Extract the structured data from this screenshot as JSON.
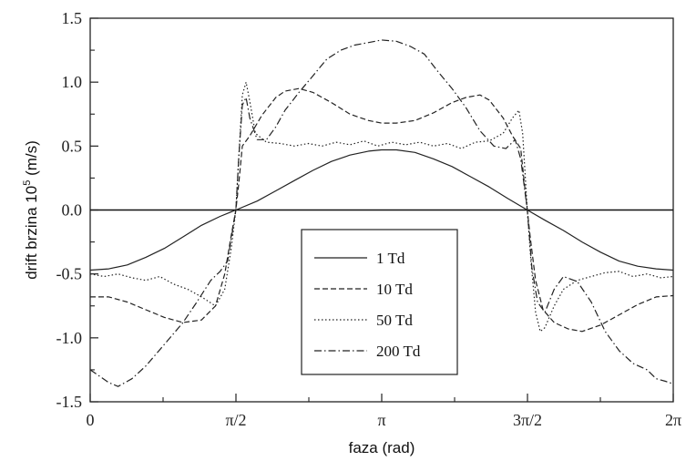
{
  "chart_data": {
    "type": "line",
    "title": "",
    "xlabel": "faza (rad)",
    "ylabel_prefix": "drift brzina 10",
    "ylabel_exp": "5",
    "ylabel_suffix": " (m/s)",
    "xlim": [
      0,
      6.2832
    ],
    "ylim": [
      -1.5,
      1.5
    ],
    "x_ticks": [
      {
        "value": 0,
        "label": "0"
      },
      {
        "value": 1.5708,
        "label": "π/2"
      },
      {
        "value": 3.1416,
        "label": "π"
      },
      {
        "value": 4.7124,
        "label": "3π/2"
      },
      {
        "value": 6.2832,
        "label": "2π"
      }
    ],
    "y_ticks": [
      {
        "value": -1.5,
        "label": "-1.5"
      },
      {
        "value": -1.0,
        "label": "-1.0"
      },
      {
        "value": -0.5,
        "label": "-0.5"
      },
      {
        "value": 0.0,
        "label": "0.0"
      },
      {
        "value": 0.5,
        "label": "0.5"
      },
      {
        "value": 1.0,
        "label": "1.0"
      },
      {
        "value": 1.5,
        "label": "1.5"
      }
    ],
    "legend_position": "lower-center",
    "grid": false,
    "series": [
      {
        "name": "1 Td",
        "dash": "solid",
        "points": [
          [
            0,
            -0.47
          ],
          [
            0.2,
            -0.46
          ],
          [
            0.4,
            -0.43
          ],
          [
            0.6,
            -0.37
          ],
          [
            0.8,
            -0.3
          ],
          [
            1.0,
            -0.21
          ],
          [
            1.2,
            -0.12
          ],
          [
            1.4,
            -0.05
          ],
          [
            1.57,
            0.0
          ],
          [
            1.8,
            0.07
          ],
          [
            2.0,
            0.15
          ],
          [
            2.2,
            0.23
          ],
          [
            2.4,
            0.31
          ],
          [
            2.6,
            0.38
          ],
          [
            2.8,
            0.43
          ],
          [
            3.0,
            0.46
          ],
          [
            3.14,
            0.47
          ],
          [
            3.3,
            0.47
          ],
          [
            3.5,
            0.45
          ],
          [
            3.7,
            0.4
          ],
          [
            3.9,
            0.34
          ],
          [
            4.1,
            0.26
          ],
          [
            4.3,
            0.18
          ],
          [
            4.5,
            0.09
          ],
          [
            4.71,
            0.0
          ],
          [
            4.9,
            -0.08
          ],
          [
            5.1,
            -0.16
          ],
          [
            5.3,
            -0.25
          ],
          [
            5.5,
            -0.33
          ],
          [
            5.7,
            -0.4
          ],
          [
            5.9,
            -0.44
          ],
          [
            6.1,
            -0.46
          ],
          [
            6.2832,
            -0.47
          ]
        ]
      },
      {
        "name": "10 Td",
        "dash": "dashed",
        "points": [
          [
            0,
            -0.68
          ],
          [
            0.2,
            -0.68
          ],
          [
            0.4,
            -0.72
          ],
          [
            0.6,
            -0.78
          ],
          [
            0.8,
            -0.84
          ],
          [
            1.0,
            -0.88
          ],
          [
            1.2,
            -0.86
          ],
          [
            1.35,
            -0.75
          ],
          [
            1.45,
            -0.5
          ],
          [
            1.52,
            -0.2
          ],
          [
            1.57,
            0.0
          ],
          [
            1.6,
            0.2
          ],
          [
            1.64,
            0.5
          ],
          [
            1.72,
            0.58
          ],
          [
            1.85,
            0.74
          ],
          [
            2.0,
            0.88
          ],
          [
            2.1,
            0.93
          ],
          [
            2.25,
            0.95
          ],
          [
            2.4,
            0.92
          ],
          [
            2.6,
            0.84
          ],
          [
            2.8,
            0.75
          ],
          [
            3.0,
            0.7
          ],
          [
            3.14,
            0.68
          ],
          [
            3.3,
            0.68
          ],
          [
            3.5,
            0.7
          ],
          [
            3.7,
            0.76
          ],
          [
            3.9,
            0.84
          ],
          [
            4.05,
            0.88
          ],
          [
            4.2,
            0.9
          ],
          [
            4.3,
            0.86
          ],
          [
            4.45,
            0.72
          ],
          [
            4.55,
            0.58
          ],
          [
            4.64,
            0.48
          ],
          [
            4.68,
            0.2
          ],
          [
            4.71,
            0.0
          ],
          [
            4.74,
            -0.2
          ],
          [
            4.8,
            -0.55
          ],
          [
            4.88,
            -0.78
          ],
          [
            5.0,
            -0.88
          ],
          [
            5.15,
            -0.93
          ],
          [
            5.3,
            -0.95
          ],
          [
            5.5,
            -0.9
          ],
          [
            5.7,
            -0.82
          ],
          [
            5.9,
            -0.74
          ],
          [
            6.1,
            -0.68
          ],
          [
            6.2832,
            -0.67
          ]
        ]
      },
      {
        "name": "50 Td",
        "dash": "dotted",
        "points": [
          [
            0,
            -0.5
          ],
          [
            0.15,
            -0.52
          ],
          [
            0.3,
            -0.5
          ],
          [
            0.45,
            -0.53
          ],
          [
            0.6,
            -0.55
          ],
          [
            0.75,
            -0.52
          ],
          [
            0.9,
            -0.58
          ],
          [
            1.05,
            -0.62
          ],
          [
            1.2,
            -0.68
          ],
          [
            1.35,
            -0.75
          ],
          [
            1.45,
            -0.62
          ],
          [
            1.52,
            -0.3
          ],
          [
            1.57,
            0.0
          ],
          [
            1.6,
            0.4
          ],
          [
            1.64,
            0.9
          ],
          [
            1.68,
            1.0
          ],
          [
            1.72,
            0.85
          ],
          [
            1.78,
            0.6
          ],
          [
            1.9,
            0.53
          ],
          [
            2.05,
            0.52
          ],
          [
            2.2,
            0.5
          ],
          [
            2.35,
            0.52
          ],
          [
            2.5,
            0.5
          ],
          [
            2.65,
            0.53
          ],
          [
            2.8,
            0.51
          ],
          [
            2.95,
            0.54
          ],
          [
            3.1,
            0.5
          ],
          [
            3.25,
            0.53
          ],
          [
            3.4,
            0.51
          ],
          [
            3.55,
            0.53
          ],
          [
            3.7,
            0.5
          ],
          [
            3.85,
            0.52
          ],
          [
            4.0,
            0.48
          ],
          [
            4.15,
            0.53
          ],
          [
            4.3,
            0.54
          ],
          [
            4.45,
            0.6
          ],
          [
            4.55,
            0.72
          ],
          [
            4.62,
            0.78
          ],
          [
            4.66,
            0.6
          ],
          [
            4.71,
            0.0
          ],
          [
            4.75,
            -0.4
          ],
          [
            4.8,
            -0.8
          ],
          [
            4.85,
            -0.95
          ],
          [
            4.9,
            -0.92
          ],
          [
            5.0,
            -0.75
          ],
          [
            5.1,
            -0.62
          ],
          [
            5.25,
            -0.55
          ],
          [
            5.4,
            -0.52
          ],
          [
            5.55,
            -0.49
          ],
          [
            5.7,
            -0.48
          ],
          [
            5.85,
            -0.52
          ],
          [
            6.0,
            -0.5
          ],
          [
            6.15,
            -0.53
          ],
          [
            6.2832,
            -0.52
          ]
        ]
      },
      {
        "name": "200 Td",
        "dash": "dashdot",
        "points": [
          [
            0,
            -1.25
          ],
          [
            0.1,
            -1.3
          ],
          [
            0.2,
            -1.35
          ],
          [
            0.3,
            -1.38
          ],
          [
            0.45,
            -1.32
          ],
          [
            0.6,
            -1.22
          ],
          [
            0.8,
            -1.05
          ],
          [
            1.0,
            -0.88
          ],
          [
            1.15,
            -0.72
          ],
          [
            1.3,
            -0.55
          ],
          [
            1.4,
            -0.48
          ],
          [
            1.48,
            -0.4
          ],
          [
            1.57,
            0.0
          ],
          [
            1.6,
            0.4
          ],
          [
            1.64,
            0.82
          ],
          [
            1.68,
            0.88
          ],
          [
            1.72,
            0.72
          ],
          [
            1.8,
            0.55
          ],
          [
            1.9,
            0.55
          ],
          [
            2.0,
            0.65
          ],
          [
            2.1,
            0.78
          ],
          [
            2.25,
            0.92
          ],
          [
            2.4,
            1.05
          ],
          [
            2.55,
            1.18
          ],
          [
            2.7,
            1.25
          ],
          [
            2.85,
            1.29
          ],
          [
            3.0,
            1.31
          ],
          [
            3.14,
            1.33
          ],
          [
            3.3,
            1.32
          ],
          [
            3.45,
            1.28
          ],
          [
            3.6,
            1.22
          ],
          [
            3.75,
            1.08
          ],
          [
            3.9,
            0.95
          ],
          [
            4.05,
            0.8
          ],
          [
            4.2,
            0.62
          ],
          [
            4.35,
            0.5
          ],
          [
            4.48,
            0.48
          ],
          [
            4.58,
            0.55
          ],
          [
            4.64,
            0.4
          ],
          [
            4.71,
            0.0
          ],
          [
            4.76,
            -0.45
          ],
          [
            4.82,
            -0.72
          ],
          [
            4.9,
            -0.8
          ],
          [
            5.0,
            -0.62
          ],
          [
            5.1,
            -0.52
          ],
          [
            5.25,
            -0.56
          ],
          [
            5.4,
            -0.72
          ],
          [
            5.55,
            -0.95
          ],
          [
            5.7,
            -1.1
          ],
          [
            5.85,
            -1.2
          ],
          [
            6.0,
            -1.25
          ],
          [
            6.1,
            -1.32
          ],
          [
            6.2,
            -1.34
          ],
          [
            6.2832,
            -1.36
          ]
        ]
      }
    ]
  }
}
